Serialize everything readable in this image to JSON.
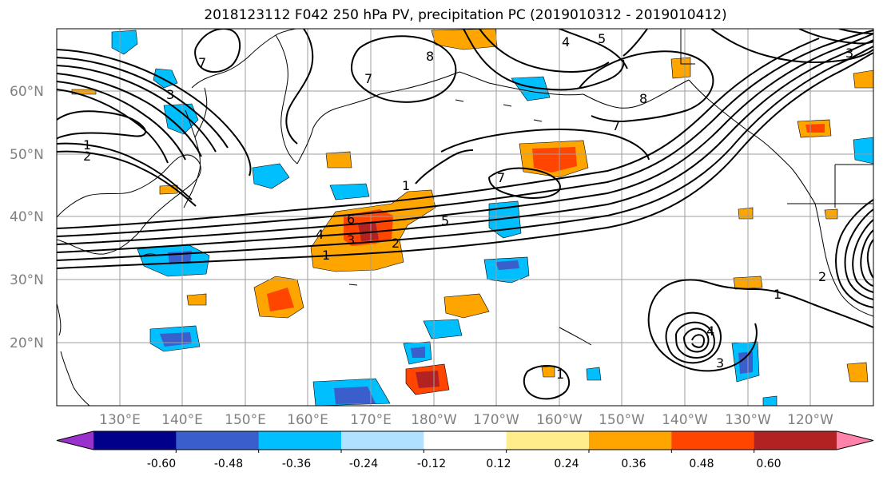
{
  "title": "2018123112 F042 250 hPa PV, precipitation PC (2019010312 - 2019010412)",
  "lat_labels": [
    "60°N",
    "50°N",
    "40°N",
    "30°N",
    "20°N"
  ],
  "lon_labels": [
    "130°E",
    "140°E",
    "150°E",
    "160°E",
    "170°E",
    "180°W",
    "170°W",
    "160°W",
    "150°W",
    "140°W",
    "130°W",
    "120°W"
  ],
  "colorbar": {
    "tick_labels": [
      "-0.60",
      "-0.48",
      "-0.36",
      "-0.24",
      "-0.12",
      "0.12",
      "0.24",
      "0.36",
      "0.48",
      "0.60"
    ],
    "colors": [
      "#9932cc",
      "#00008b",
      "#3a5fcd",
      "#00bfff",
      "#b0e2ff",
      "#ffffff",
      "#ffec8b",
      "#ffa500",
      "#ff4500",
      "#b22222",
      "#ff82ab"
    ]
  },
  "contour_labels": [
    "1",
    "2",
    "7",
    "3",
    "8",
    "4",
    "5",
    "3",
    "7",
    "8",
    "7",
    "7",
    "1",
    "5",
    "6",
    "4",
    "3",
    "2",
    "1",
    "1",
    "4",
    "3",
    "2",
    "1"
  ]
}
